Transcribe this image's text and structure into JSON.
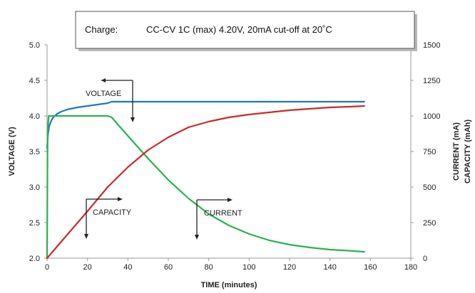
{
  "chart_data": {
    "type": "line",
    "condition_box": {
      "label": "Charge:",
      "text": "CC-CV 1C (max) 4.20V, 20mA cut-off at 20˚C"
    },
    "xlabel": "TIME (minutes)",
    "ylabel_left": "VOLTAGE (V)",
    "ylabel_right": [
      "CURRENT (mA)",
      "CAPACITY (mAh)"
    ],
    "xlim": [
      0,
      180
    ],
    "x_ticks": [
      "0",
      "20",
      "40",
      "60",
      "80",
      "100",
      "120",
      "140",
      "160",
      "180"
    ],
    "ylim_left": [
      2.0,
      5.0
    ],
    "y_left_ticks": [
      "2.0",
      "2.5",
      "3.0",
      "3.5",
      "4.0",
      "4.5",
      "5.0"
    ],
    "ylim_right": [
      0,
      1500
    ],
    "y_right_ticks": [
      "0",
      "250",
      "500",
      "750",
      "1000",
      "1250",
      "1500"
    ],
    "grid": false,
    "annotations": {
      "voltage": "VOLTAGE",
      "capacity": "CAPACITY",
      "current": "CURRENT"
    },
    "series": [
      {
        "name": "VOLTAGE",
        "axis": "left",
        "color": "#1f77c4",
        "x": [
          0,
          0.5,
          1,
          2,
          3,
          5,
          7,
          10,
          15,
          20,
          25,
          30,
          32,
          40,
          60,
          80,
          100,
          120,
          140,
          157
        ],
        "y": [
          3.55,
          3.75,
          3.85,
          3.93,
          3.98,
          4.03,
          4.06,
          4.09,
          4.12,
          4.14,
          4.16,
          4.18,
          4.2,
          4.2,
          4.2,
          4.2,
          4.2,
          4.2,
          4.2,
          4.2
        ]
      },
      {
        "name": "CURRENT",
        "axis": "right",
        "color": "#2bb24c",
        "x": [
          0,
          0.3,
          0.8,
          2,
          5,
          10,
          20,
          30,
          32,
          35,
          40,
          50,
          60,
          70,
          80,
          90,
          100,
          110,
          120,
          130,
          140,
          150,
          157
        ],
        "y": [
          0,
          900,
          1000,
          1000,
          1000,
          1000,
          1000,
          1000,
          990,
          940,
          860,
          700,
          550,
          420,
          310,
          230,
          170,
          125,
          95,
          75,
          60,
          52,
          45
        ]
      },
      {
        "name": "CAPACITY",
        "axis": "right",
        "color": "#cc2a2a",
        "x": [
          0,
          10,
          20,
          30,
          40,
          50,
          60,
          70,
          80,
          90,
          100,
          110,
          120,
          130,
          140,
          150,
          157
        ],
        "y": [
          0,
          165,
          330,
          500,
          640,
          760,
          850,
          920,
          960,
          990,
          1010,
          1025,
          1040,
          1050,
          1060,
          1065,
          1070
        ]
      }
    ]
  }
}
